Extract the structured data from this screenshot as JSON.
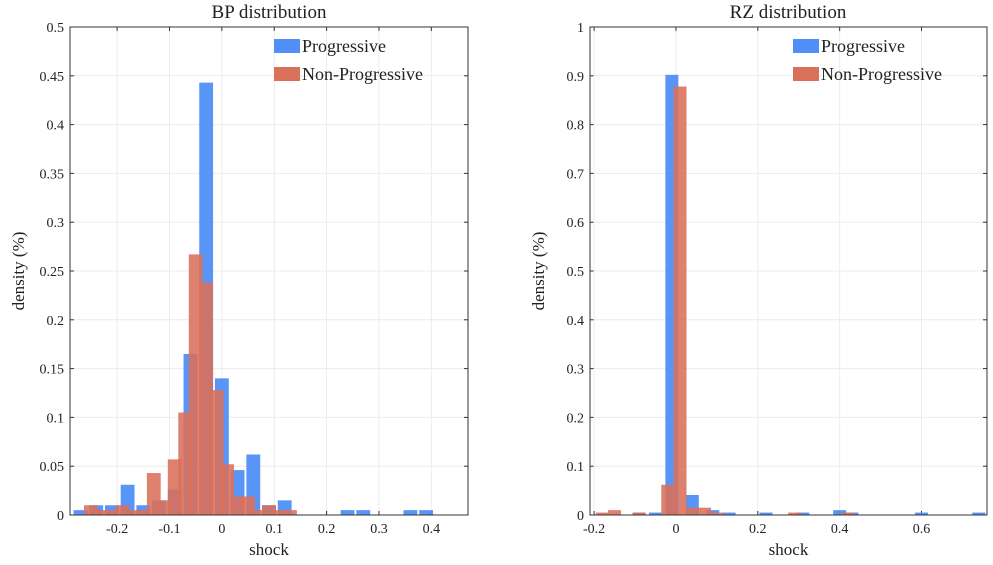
{
  "chart_data": [
    {
      "type": "bar",
      "title": "BP distribution",
      "xlabel": "shock",
      "ylabel": "density (%)",
      "xlim": [
        -0.29,
        0.47
      ],
      "ylim": [
        0,
        0.5
      ],
      "xticks": [
        "-0.2",
        "-0.1",
        "0",
        "0.1",
        "0.2",
        "0.3",
        "0.4"
      ],
      "yticks": [
        "0",
        "0.05",
        "0.1",
        "0.15",
        "0.2",
        "0.25",
        "0.3",
        "0.35",
        "0.4",
        "0.45",
        "0.5"
      ],
      "bin_width": 0.03,
      "grid": true,
      "legend_position": "top-right",
      "series": [
        {
          "name": "Progressive",
          "color": "#4f8ff7",
          "x": [
            -0.27,
            -0.24,
            -0.21,
            -0.18,
            -0.15,
            -0.12,
            -0.09,
            -0.06,
            -0.03,
            0.0,
            0.03,
            0.06,
            0.09,
            0.12,
            0.15,
            0.18,
            0.21,
            0.24,
            0.27,
            0.3,
            0.33,
            0.36,
            0.39,
            0.42,
            0.45
          ],
          "values": [
            0.005,
            0.01,
            0.01,
            0.031,
            0.01,
            0.015,
            0.026,
            0.165,
            0.443,
            0.14,
            0.046,
            0.062,
            0.01,
            0.015,
            0.0,
            0.0,
            0.0,
            0.005,
            0.005,
            0.0,
            0.0,
            0.005,
            0.005,
            0.0,
            0.0
          ]
        },
        {
          "name": "Non-Progressive",
          "color": "#d9705a",
          "x": [
            -0.25,
            -0.23,
            -0.21,
            -0.19,
            -0.17,
            -0.15,
            -0.13,
            -0.11,
            -0.09,
            -0.07,
            -0.05,
            -0.03,
            -0.01,
            0.01,
            0.03,
            0.05,
            0.07,
            0.09,
            0.11,
            0.13,
            0.15,
            0.17,
            0.19
          ],
          "values": [
            0.01,
            0.005,
            0.005,
            0.01,
            0.005,
            0.005,
            0.043,
            0.015,
            0.057,
            0.105,
            0.267,
            0.238,
            0.128,
            0.052,
            0.019,
            0.019,
            0.005,
            0.01,
            0.005,
            0.005,
            0.0,
            0.0,
            0.0
          ]
        }
      ]
    },
    {
      "type": "bar",
      "title": "RZ distribution",
      "xlabel": "shock",
      "ylabel": "density (%)",
      "xlim": [
        -0.21,
        0.76
      ],
      "ylim": [
        0,
        1
      ],
      "xticks": [
        "-0.2",
        "0",
        "0.2",
        "0.4",
        "0.6"
      ],
      "yticks": [
        "0",
        "0.1",
        "0.2",
        "0.3",
        "0.4",
        "0.5",
        "0.6",
        "0.7",
        "0.8",
        "0.9",
        "1"
      ],
      "bin_width": 0.036,
      "grid": true,
      "legend_position": "top-right",
      "series": [
        {
          "name": "Progressive",
          "color": "#4f8ff7",
          "x": [
            -0.09,
            -0.05,
            -0.01,
            0.04,
            0.09,
            0.13,
            0.22,
            0.31,
            0.4,
            0.43,
            0.6,
            0.74
          ],
          "values": [
            0.005,
            0.005,
            0.902,
            0.041,
            0.01,
            0.005,
            0.005,
            0.005,
            0.01,
            0.005,
            0.005,
            0.005
          ],
          "x_all": []
        },
        {
          "name": "Non-Progressive",
          "color": "#d9705a",
          "x": [
            -0.18,
            -0.15,
            -0.09,
            -0.02,
            0.01,
            0.04,
            0.07,
            0.1,
            0.29,
            0.42
          ],
          "values": [
            0.005,
            0.01,
            0.005,
            0.062,
            0.878,
            0.015,
            0.015,
            0.005,
            0.005,
            0.005
          ]
        }
      ]
    }
  ]
}
